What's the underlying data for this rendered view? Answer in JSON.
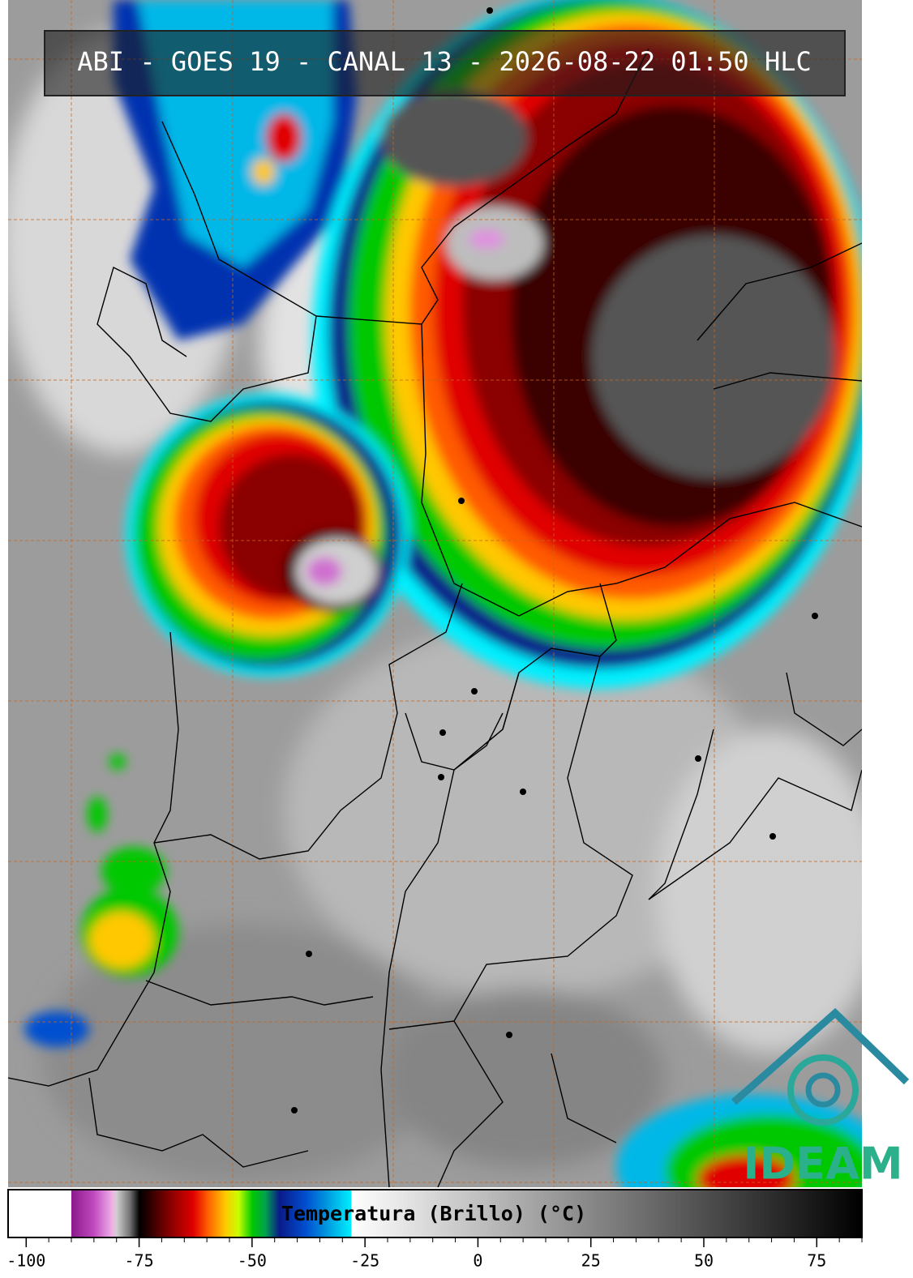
{
  "title": "ABI - GOES 19 - CANAL 13 - 2026-08-22 01:50 HLC",
  "colorbar": {
    "label": "Temperatura (Brillo) (°C)",
    "xlim": [
      -104,
      85
    ],
    "ticks": [
      -100,
      -75,
      -50,
      -25,
      0,
      25,
      50,
      75
    ],
    "minor_ticks": [
      -95,
      -90,
      -85,
      -80,
      -70,
      -65,
      -60,
      -55,
      -45,
      -40,
      -35,
      -30,
      -20,
      -15,
      -10,
      -5,
      5,
      10,
      15,
      20,
      30,
      35,
      40,
      45,
      55,
      60,
      65,
      70,
      80,
      85
    ],
    "stops": [
      {
        "value": -104,
        "color": "#ffffff"
      },
      {
        "value": -90,
        "color": "#ffffff"
      },
      {
        "value": -90,
        "color": "#8a1a8a"
      },
      {
        "value": -85,
        "color": "#c04ac0"
      },
      {
        "value": -81,
        "color": "#f0b0e8"
      },
      {
        "value": -80,
        "color": "#d0d0d0"
      },
      {
        "value": -77,
        "color": "#707070"
      },
      {
        "value": -75,
        "color": "#000000"
      },
      {
        "value": -72,
        "color": "#3a0000"
      },
      {
        "value": -68,
        "color": "#8b0000"
      },
      {
        "value": -63,
        "color": "#e00000"
      },
      {
        "value": -60,
        "color": "#ff5a00"
      },
      {
        "value": -56,
        "color": "#ffc800"
      },
      {
        "value": -53,
        "color": "#c8ff00"
      },
      {
        "value": -50,
        "color": "#00c800"
      },
      {
        "value": -47,
        "color": "#00a050"
      },
      {
        "value": -44,
        "color": "#0a1a8a"
      },
      {
        "value": -38,
        "color": "#0050d0"
      },
      {
        "value": -33,
        "color": "#00a0e0"
      },
      {
        "value": -28,
        "color": "#00f0ff"
      },
      {
        "value": -28,
        "color": "#ffffff"
      },
      {
        "value": 85,
        "color": "#000000"
      }
    ]
  },
  "logo": {
    "text": "IDEAM"
  }
}
